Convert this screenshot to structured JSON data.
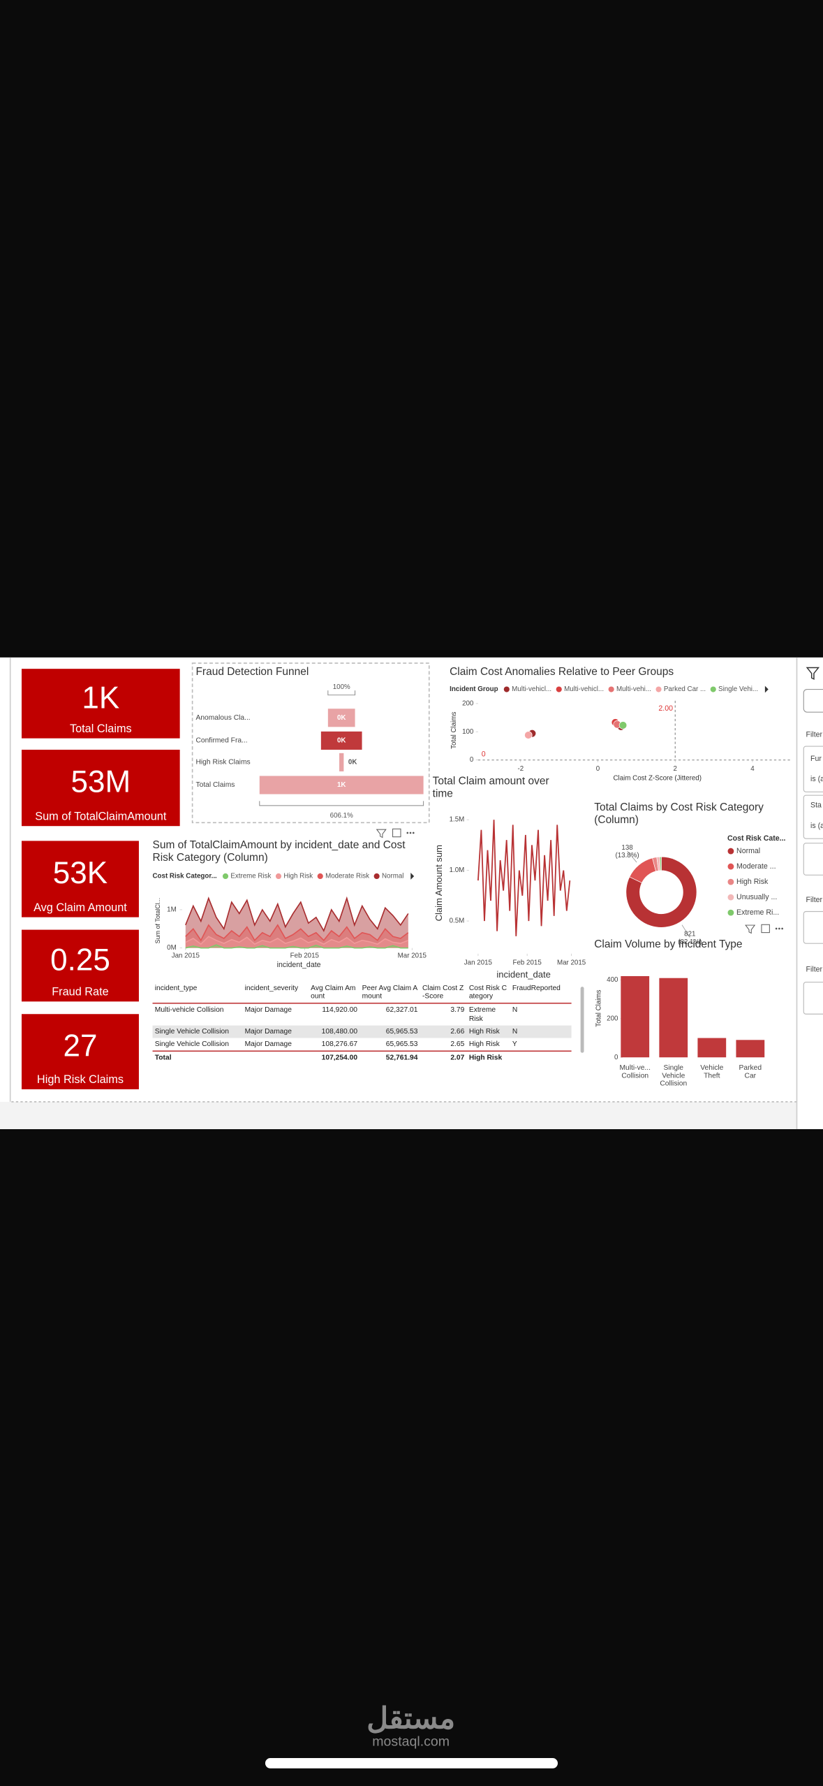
{
  "kpi_cards": [
    {
      "value": "1K",
      "label": "Total Claims"
    },
    {
      "value": "53M",
      "label": "Sum of TotalClaimAmount"
    },
    {
      "value": "53K",
      "label": "Avg Claim Amount"
    },
    {
      "value": "0.25",
      "label": "Fraud Rate"
    },
    {
      "value": "27",
      "label": "High Risk Claims"
    }
  ],
  "chart_data": [
    {
      "type": "funnel",
      "title": "Fraud Detection Funnel",
      "categories": [
        "Anomalous Cla...",
        "Confirmed Fra...",
        "High Risk Claims",
        "Total Claims"
      ],
      "values": [
        165,
        250,
        27,
        1000
      ],
      "value_labels": [
        "0K",
        "0K",
        "0K",
        "1K"
      ],
      "colors": [
        "#e8a3a5",
        "#c0393b",
        "#e8a3a5",
        "#e8a3a5"
      ],
      "top_label": "100%",
      "bottom_label": "606.1%"
    },
    {
      "type": "scatter",
      "title": "Claim Cost Anomalies Relative to Peer Groups",
      "legend_title": "Incident Group",
      "xlabel": "Claim Cost Z-Score (Jittered)",
      "ylabel": "Total Claims",
      "xlim": [
        -3.1,
        5
      ],
      "xticks": [
        -2,
        0,
        2,
        4
      ],
      "ylim": [
        0,
        210
      ],
      "yticks": [
        0,
        100,
        200
      ],
      "series": [
        {
          "name": "Multi-vehicl...",
          "color": "#9e2a2b",
          "x": [
            0.6,
            -1.7
          ],
          "values": [
            118,
            94
          ]
        },
        {
          "name": "Multi-vehicl...",
          "color": "#d94040",
          "x": [
            0.45
          ],
          "values": [
            133
          ]
        },
        {
          "name": "Multi-vehi...",
          "color": "#e57373",
          "x": [
            0.5
          ],
          "values": [
            126
          ]
        },
        {
          "name": "Parked Car ...",
          "color": "#f4a6a6",
          "x": [
            -1.8
          ],
          "values": [
            88
          ]
        },
        {
          "name": "Single Vehi...",
          "color": "#7fc96b",
          "x": [
            0.65
          ],
          "values": [
            123
          ]
        }
      ],
      "reference_lines": [
        {
          "axis": "x",
          "value": 2,
          "label": "2.00"
        },
        {
          "axis": "y",
          "value": 0,
          "label": "0"
        }
      ]
    },
    {
      "type": "area",
      "title": "Sum of TotalClaimAmount by incident_date and Cost Risk Category (Column)",
      "legend_title": "Cost Risk Categor...",
      "xlabel": "incident_date",
      "ylabel": "Sum of TotalCl...",
      "xlim": [
        0,
        59
      ],
      "xticks": [
        {
          "value": 0,
          "label": "Jan 2015"
        },
        {
          "value": 31,
          "label": "Feb 2015"
        },
        {
          "value": 59,
          "label": "Mar 2015"
        }
      ],
      "ylim": [
        0,
        1400000
      ],
      "yticks": [
        {
          "value": 0,
          "label": "0M"
        },
        {
          "value": 1000000,
          "label": "1M"
        }
      ],
      "x": [
        0,
        2,
        4,
        6,
        8,
        10,
        12,
        14,
        16,
        18,
        20,
        22,
        24,
        26,
        28,
        30,
        32,
        34,
        36,
        38,
        40,
        42,
        44,
        46,
        48,
        50,
        52,
        54,
        56,
        58
      ],
      "series": [
        {
          "name": "Extreme Risk",
          "color": "#7fc96b",
          "values": [
            0,
            50000,
            0,
            0,
            80000,
            0,
            0,
            30000,
            0,
            0,
            60000,
            0,
            0,
            0,
            40000,
            0,
            0,
            70000,
            0,
            0,
            0,
            50000,
            0,
            0,
            30000,
            0,
            0,
            60000,
            0,
            0
          ]
        },
        {
          "name": "High Risk",
          "color": "#f09a9a",
          "values": [
            150000,
            250000,
            100000,
            300000,
            200000,
            120000,
            220000,
            150000,
            280000,
            100000,
            200000,
            150000,
            250000,
            120000,
            180000,
            260000,
            140000,
            200000,
            100000,
            220000,
            150000,
            270000,
            120000,
            200000,
            160000,
            100000,
            240000,
            150000,
            120000,
            200000
          ]
        },
        {
          "name": "Moderate Risk",
          "color": "#e05555",
          "values": [
            300000,
            500000,
            200000,
            600000,
            350000,
            250000,
            450000,
            300000,
            550000,
            200000,
            400000,
            300000,
            600000,
            250000,
            350000,
            500000,
            300000,
            400000,
            200000,
            450000,
            300000,
            550000,
            250000,
            400000,
            350000,
            200000,
            500000,
            300000,
            250000,
            400000
          ]
        },
        {
          "name": "Normal",
          "color": "#a82c2e",
          "values": [
            600000,
            1100000,
            700000,
            1300000,
            800000,
            500000,
            1200000,
            900000,
            1250000,
            600000,
            1000000,
            700000,
            1150000,
            550000,
            900000,
            1200000,
            650000,
            800000,
            450000,
            1000000,
            700000,
            1300000,
            600000,
            1100000,
            750000,
            500000,
            1050000,
            850000,
            600000,
            900000
          ]
        }
      ]
    },
    {
      "type": "line",
      "title": "Total Claim amount over time",
      "xlabel": "incident_date",
      "ylabel": "Claim Amount sum",
      "xlim": [
        0,
        59
      ],
      "xticks": [
        {
          "value": 0,
          "label": "Jan 2015"
        },
        {
          "value": 31,
          "label": "Feb 2015"
        },
        {
          "value": 59,
          "label": "Mar 2015"
        }
      ],
      "ylim": [
        200000,
        1550000
      ],
      "yticks": [
        {
          "value": 500000,
          "label": "0.5M"
        },
        {
          "value": 1000000,
          "label": "1.0M"
        },
        {
          "value": 1500000,
          "label": "1.5M"
        }
      ],
      "x": [
        0,
        2,
        4,
        6,
        8,
        10,
        12,
        14,
        16,
        18,
        20,
        22,
        24,
        26,
        28,
        30,
        32,
        34,
        36,
        38,
        40,
        42,
        44,
        46,
        48,
        50,
        52,
        54,
        56,
        58
      ],
      "color": "#b83234",
      "values": [
        900000,
        1400000,
        500000,
        1200000,
        700000,
        1500000,
        400000,
        1100000,
        800000,
        1300000,
        600000,
        1450000,
        350000,
        1000000,
        750000,
        1350000,
        500000,
        1250000,
        900000,
        1400000,
        450000,
        1150000,
        700000,
        1300000,
        550000,
        1450000,
        800000,
        1000000,
        600000,
        900000
      ]
    },
    {
      "type": "pie",
      "title": "Total Claims by Cost Risk Category (Column)",
      "legend_title": "Cost Risk Cate...",
      "categories": [
        "Normal",
        "Moderate ...",
        "High Risk",
        "Unusually ...",
        "Extreme Ri..."
      ],
      "values": [
        821,
        138,
        20,
        14,
        7
      ],
      "value_labels": [
        "821 (82.1%)",
        "138 (13.8%)",
        null,
        null,
        null
      ],
      "colors": [
        "#b83234",
        "#e05555",
        "#e98686",
        "#f2b8b8",
        "#7fc96b"
      ]
    },
    {
      "type": "bar",
      "title": "Claim Volume by Incident Type",
      "ylabel": "Total Claims",
      "categories": [
        "Multi-ve... Collision",
        "Single Vehicle Collision",
        "Vehicle Theft",
        "Parked Car"
      ],
      "values": [
        420,
        410,
        100,
        90
      ],
      "color": "#c0393b",
      "ylim": [
        0,
        430
      ],
      "yticks": [
        0,
        200,
        400
      ]
    }
  ],
  "table": {
    "columns": [
      "incident_type",
      "incident_severity",
      "Avg Claim Amount",
      "Peer Avg Claim Amount",
      "Claim Cost Z-Score",
      "Cost Risk Category",
      "FraudReported"
    ],
    "rows": [
      [
        "Multi-vehicle Collision",
        "Major Damage",
        "114,920.00",
        "62,327.01",
        "3.79",
        "Extreme Risk",
        "N"
      ],
      [
        "Single Vehicle Collision",
        "Major Damage",
        "108,480.00",
        "65,965.53",
        "2.66",
        "High Risk",
        "N"
      ],
      [
        "Single Vehicle Collision",
        "Major Damage",
        "108,276.67",
        "65,965.53",
        "2.65",
        "High Risk",
        "Y"
      ]
    ],
    "total": {
      "label": "Total",
      "values": [
        "107,254.00",
        "52,761.94",
        "2.07",
        "High Risk"
      ]
    }
  },
  "filter_pane": [
    "Filter",
    "Fur",
    "is (a",
    "Sta",
    "is (a",
    "Filter",
    "Filter"
  ],
  "watermark": {
    "arabic": "مستقل",
    "latin": "mostaql.com"
  }
}
